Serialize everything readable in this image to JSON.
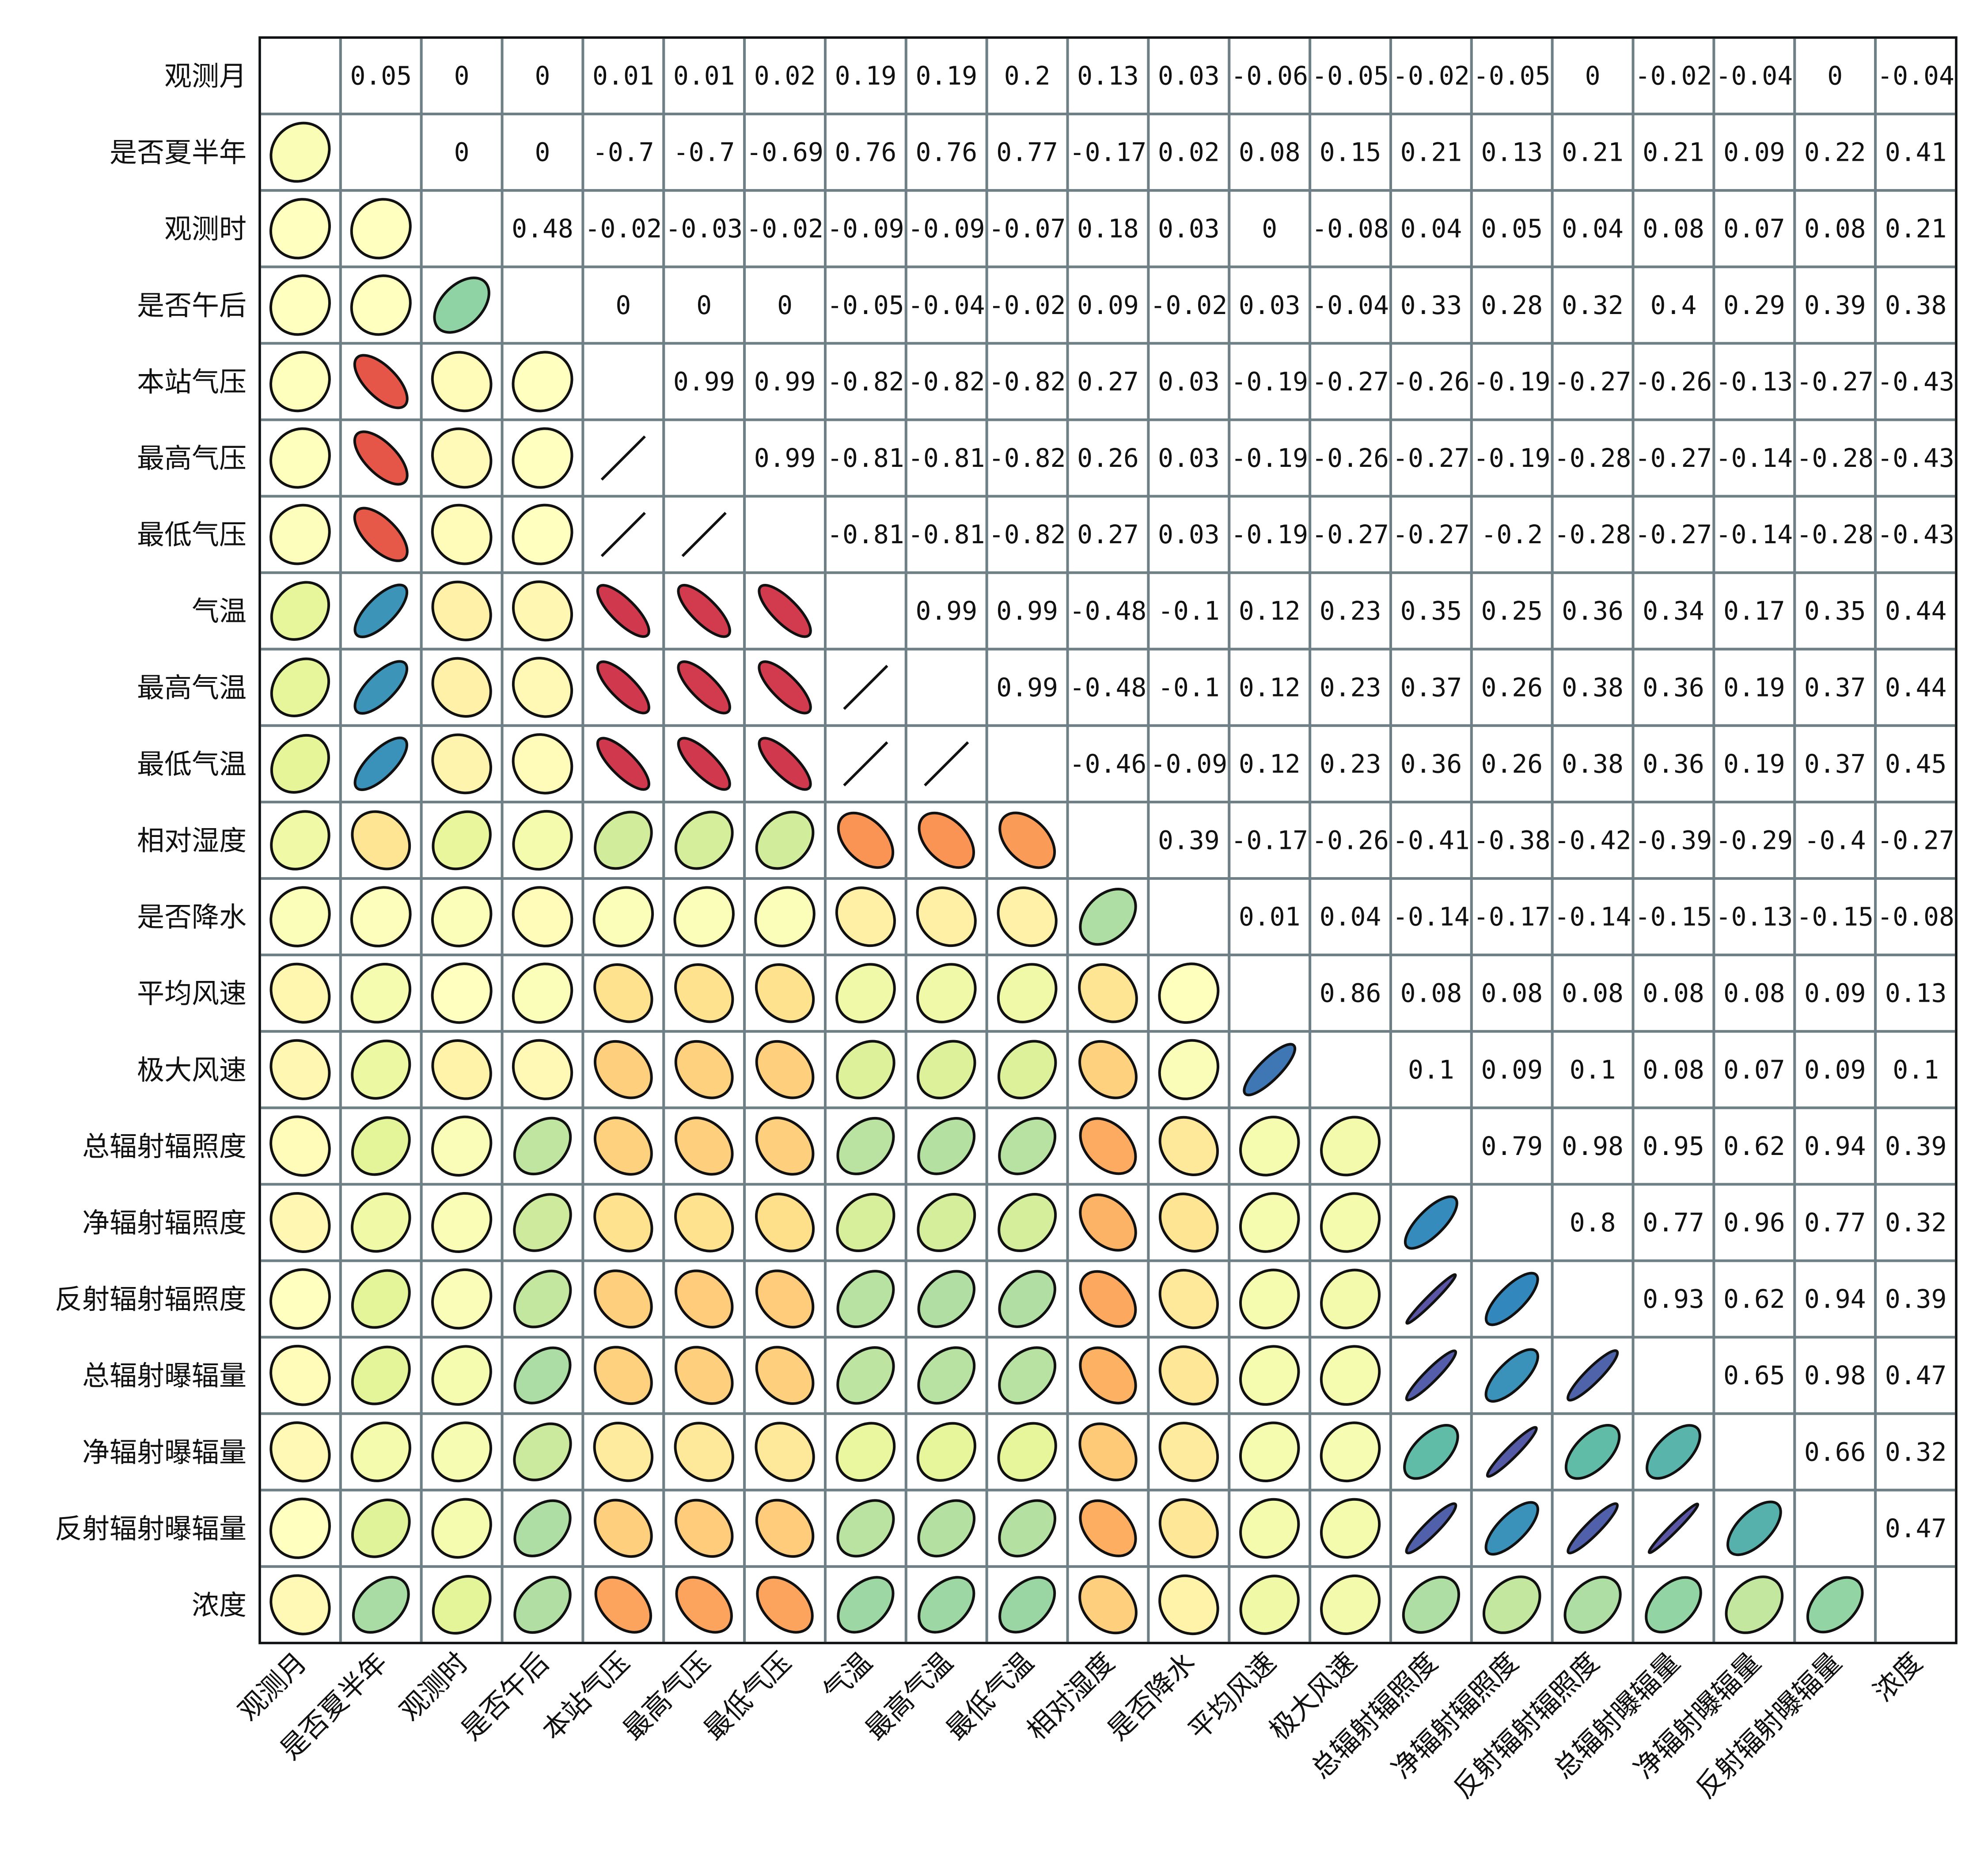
{
  "chart_data": {
    "type": "heatmap",
    "subtype": "correlation-matrix-ellipse",
    "title": "",
    "xlabel": "",
    "ylabel": "",
    "upper_triangle": "numeric correlation values",
    "lower_triangle": "ellipses shaped and colored by correlation",
    "diagonal": "empty",
    "colormap": "Spectral",
    "value_range": [
      -1,
      1
    ],
    "grid_color": "#6e7f85",
    "variables": [
      "观测月",
      "是否夏半年",
      "观测时",
      "是否午后",
      "本站气压",
      "最高气压",
      "最低气压",
      "气温",
      "最高气温",
      "最低气温",
      "相对湿度",
      "是否降水",
      "平均风速",
      "极大风速",
      "总辐射辐照度",
      "净辐射辐照度",
      "反射辐射辐照度",
      "总辐射曝辐量",
      "净辐射曝辐量",
      "反射辐射曝辐量",
      "浓度"
    ],
    "matrix": [
      [
        null,
        0.05,
        0.0,
        0.0,
        0.01,
        0.01,
        0.02,
        0.19,
        0.19,
        0.2,
        0.13,
        0.03,
        -0.06,
        -0.05,
        -0.02,
        -0.05,
        0.0,
        -0.02,
        -0.04,
        0.0,
        -0.04
      ],
      [
        0.05,
        null,
        0.0,
        0.0,
        -0.7,
        -0.7,
        -0.69,
        0.76,
        0.76,
        0.77,
        -0.17,
        0.02,
        0.08,
        0.15,
        0.21,
        0.13,
        0.21,
        0.21,
        0.09,
        0.22,
        0.41
      ],
      [
        0.0,
        0.0,
        null,
        0.48,
        -0.02,
        -0.03,
        -0.02,
        -0.09,
        -0.09,
        -0.07,
        0.18,
        0.03,
        0.0,
        -0.08,
        0.04,
        0.05,
        0.04,
        0.08,
        0.07,
        0.08,
        0.21
      ],
      [
        0.0,
        0.0,
        0.48,
        null,
        0.0,
        0.0,
        0.0,
        -0.05,
        -0.04,
        -0.02,
        0.09,
        -0.02,
        0.03,
        -0.04,
        0.33,
        0.28,
        0.32,
        0.4,
        0.29,
        0.39,
        0.38
      ],
      [
        0.01,
        -0.7,
        -0.02,
        0.0,
        null,
        0.99,
        0.99,
        -0.82,
        -0.82,
        -0.82,
        0.27,
        0.03,
        -0.19,
        -0.27,
        -0.26,
        -0.19,
        -0.27,
        -0.26,
        -0.13,
        -0.27,
        -0.43
      ],
      [
        0.01,
        -0.7,
        -0.03,
        0.0,
        0.99,
        null,
        0.99,
        -0.81,
        -0.81,
        -0.82,
        0.26,
        0.03,
        -0.19,
        -0.26,
        -0.27,
        -0.19,
        -0.28,
        -0.27,
        -0.14,
        -0.28,
        -0.43
      ],
      [
        0.02,
        -0.69,
        -0.02,
        0.0,
        0.99,
        0.99,
        null,
        -0.81,
        -0.81,
        -0.82,
        0.27,
        0.03,
        -0.19,
        -0.27,
        -0.27,
        -0.2,
        -0.28,
        -0.27,
        -0.14,
        -0.28,
        -0.43
      ],
      [
        0.19,
        0.76,
        -0.09,
        -0.05,
        -0.82,
        -0.81,
        -0.81,
        null,
        0.99,
        0.99,
        -0.48,
        -0.1,
        0.12,
        0.23,
        0.35,
        0.25,
        0.36,
        0.34,
        0.17,
        0.35,
        0.44
      ],
      [
        0.19,
        0.76,
        -0.09,
        -0.04,
        -0.82,
        -0.81,
        -0.81,
        0.99,
        null,
        0.99,
        -0.48,
        -0.1,
        0.12,
        0.23,
        0.37,
        0.26,
        0.38,
        0.36,
        0.19,
        0.37,
        0.44
      ],
      [
        0.2,
        0.77,
        -0.07,
        -0.02,
        -0.82,
        -0.82,
        -0.82,
        0.99,
        0.99,
        null,
        -0.46,
        -0.09,
        0.12,
        0.23,
        0.36,
        0.26,
        0.38,
        0.36,
        0.19,
        0.37,
        0.45
      ],
      [
        0.13,
        -0.17,
        0.18,
        0.09,
        0.27,
        0.26,
        0.27,
        -0.48,
        -0.48,
        -0.46,
        null,
        0.39,
        -0.17,
        -0.26,
        -0.41,
        -0.38,
        -0.42,
        -0.39,
        -0.29,
        -0.4,
        -0.27
      ],
      [
        0.03,
        0.02,
        0.03,
        -0.02,
        0.03,
        0.03,
        0.03,
        -0.1,
        -0.1,
        -0.09,
        0.39,
        null,
        0.01,
        0.04,
        -0.14,
        -0.17,
        -0.14,
        -0.15,
        -0.13,
        -0.15,
        -0.08
      ],
      [
        -0.06,
        0.08,
        0.0,
        0.03,
        -0.19,
        -0.19,
        -0.19,
        0.12,
        0.12,
        0.12,
        -0.17,
        0.01,
        null,
        0.86,
        0.08,
        0.08,
        0.08,
        0.08,
        0.08,
        0.09,
        0.13
      ],
      [
        -0.05,
        0.15,
        -0.08,
        -0.04,
        -0.27,
        -0.26,
        -0.27,
        0.23,
        0.23,
        0.23,
        -0.26,
        0.04,
        0.86,
        null,
        0.1,
        0.09,
        0.1,
        0.08,
        0.07,
        0.09,
        0.1
      ],
      [
        -0.02,
        0.21,
        0.04,
        0.33,
        -0.26,
        -0.27,
        -0.27,
        0.35,
        0.37,
        0.36,
        -0.41,
        -0.14,
        0.08,
        0.1,
        null,
        0.79,
        0.98,
        0.95,
        0.62,
        0.94,
        0.39
      ],
      [
        -0.05,
        0.13,
        0.05,
        0.28,
        -0.19,
        -0.19,
        -0.2,
        0.25,
        0.26,
        0.26,
        -0.38,
        -0.17,
        0.08,
        0.09,
        0.79,
        null,
        0.8,
        0.77,
        0.96,
        0.77,
        0.32
      ],
      [
        0.0,
        0.21,
        0.04,
        0.32,
        -0.27,
        -0.28,
        -0.28,
        0.36,
        0.38,
        0.38,
        -0.42,
        -0.14,
        0.08,
        0.1,
        0.98,
        0.8,
        null,
        0.93,
        0.62,
        0.94,
        0.39
      ],
      [
        -0.02,
        0.21,
        0.08,
        0.4,
        -0.26,
        -0.27,
        -0.27,
        0.34,
        0.36,
        0.36,
        -0.39,
        -0.15,
        0.08,
        0.08,
        0.95,
        0.77,
        0.93,
        null,
        0.65,
        0.98,
        0.47
      ],
      [
        -0.04,
        0.09,
        0.07,
        0.29,
        -0.13,
        -0.14,
        -0.14,
        0.17,
        0.19,
        0.19,
        -0.29,
        -0.13,
        0.08,
        0.07,
        0.62,
        0.96,
        0.62,
        0.65,
        null,
        0.66,
        0.32
      ],
      [
        0.0,
        0.22,
        0.08,
        0.39,
        -0.27,
        -0.28,
        -0.28,
        0.35,
        0.37,
        0.37,
        -0.4,
        -0.15,
        0.09,
        0.09,
        0.94,
        0.77,
        0.94,
        0.98,
        0.66,
        null,
        0.47
      ],
      [
        -0.04,
        0.41,
        0.21,
        0.38,
        -0.43,
        -0.43,
        -0.43,
        0.44,
        0.44,
        0.45,
        -0.27,
        -0.08,
        0.13,
        0.1,
        0.39,
        0.32,
        0.39,
        0.47,
        0.32,
        0.47,
        null
      ]
    ]
  }
}
